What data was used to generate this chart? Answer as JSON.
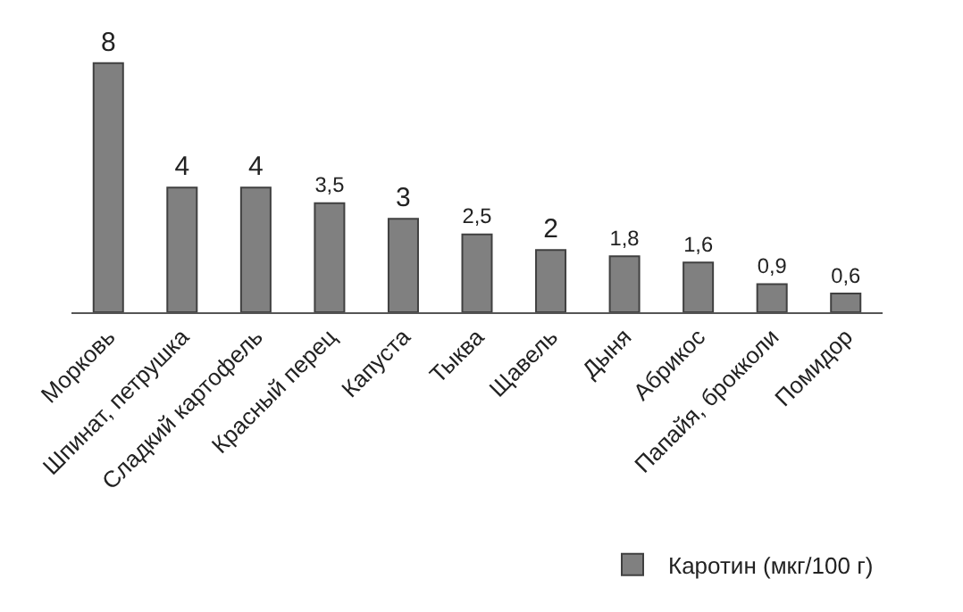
{
  "chart_data": {
    "type": "bar",
    "categories": [
      "Морковь",
      "Шпинат, петрушка",
      "Сладкий картофель",
      "Красный перец",
      "Капуста",
      "Тыква",
      "Щавель",
      "Дыня",
      "Абрикос",
      "Папайя, брокколи",
      "Помидор"
    ],
    "series": [
      {
        "name": "Каротин (мкг/100 г)",
        "color": "#808080",
        "values": [
          8,
          4,
          4,
          3.5,
          3,
          2.5,
          2,
          1.8,
          1.6,
          0.9,
          0.6
        ],
        "value_labels": [
          "8",
          "4",
          "4",
          "3,5",
          "3",
          "2,5",
          "2",
          "1,8",
          "1,6",
          "0,9",
          "0,6"
        ]
      }
    ],
    "legend": "bottom right"
  }
}
